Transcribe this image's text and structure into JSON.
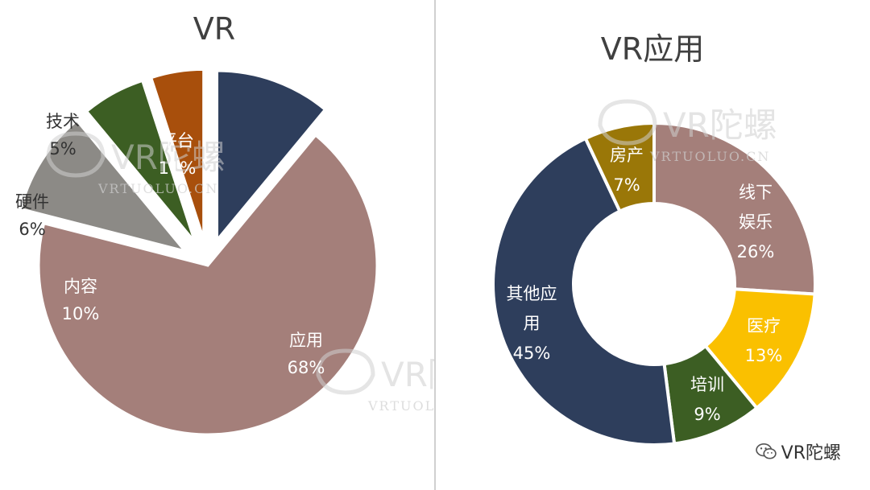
{
  "watermark": {
    "brand": "VR陀螺",
    "site": "VRTUOLUO.CN"
  },
  "footer": {
    "text": "VR陀螺",
    "icon": "wechat-icon"
  },
  "chart_data": [
    {
      "type": "pie",
      "title": "VR",
      "slices": [
        {
          "label": "平台",
          "value": 11,
          "value_label": "11%",
          "color": "#2e3e5c",
          "exploded": true
        },
        {
          "label": "应用",
          "value": 68,
          "value_label": "68%",
          "color": "#a47f7a",
          "exploded": false
        },
        {
          "label": "内容",
          "value": 10,
          "value_label": "10%",
          "color": "#8c8a86",
          "exploded": true
        },
        {
          "label": "硬件",
          "value": 6,
          "value_label": "6%",
          "color": "#3c5e23",
          "exploded": true
        },
        {
          "label": "技术",
          "value": 5,
          "value_label": "5%",
          "color": "#a84f0c",
          "exploded": true
        }
      ]
    },
    {
      "type": "pie",
      "title": "VR应用",
      "donut": true,
      "slices": [
        {
          "label": "线下娱乐",
          "label_lines": [
            "线下",
            "娱乐"
          ],
          "value": 26,
          "value_label": "26%",
          "color": "#a47f7a"
        },
        {
          "label": "医疗",
          "label_lines": [
            "医疗"
          ],
          "value": 13,
          "value_label": "13%",
          "color": "#fac000"
        },
        {
          "label": "培训",
          "label_lines": [
            "培训"
          ],
          "value": 9,
          "value_label": "9%",
          "color": "#3c5e23"
        },
        {
          "label": "其他应用",
          "label_lines": [
            "其他应",
            "用"
          ],
          "value": 45,
          "value_label": "45%",
          "color": "#2e3e5c"
        },
        {
          "label": "房产",
          "label_lines": [
            "房产"
          ],
          "value": 7,
          "value_label": "7%",
          "color": "#9a7708"
        }
      ]
    }
  ]
}
